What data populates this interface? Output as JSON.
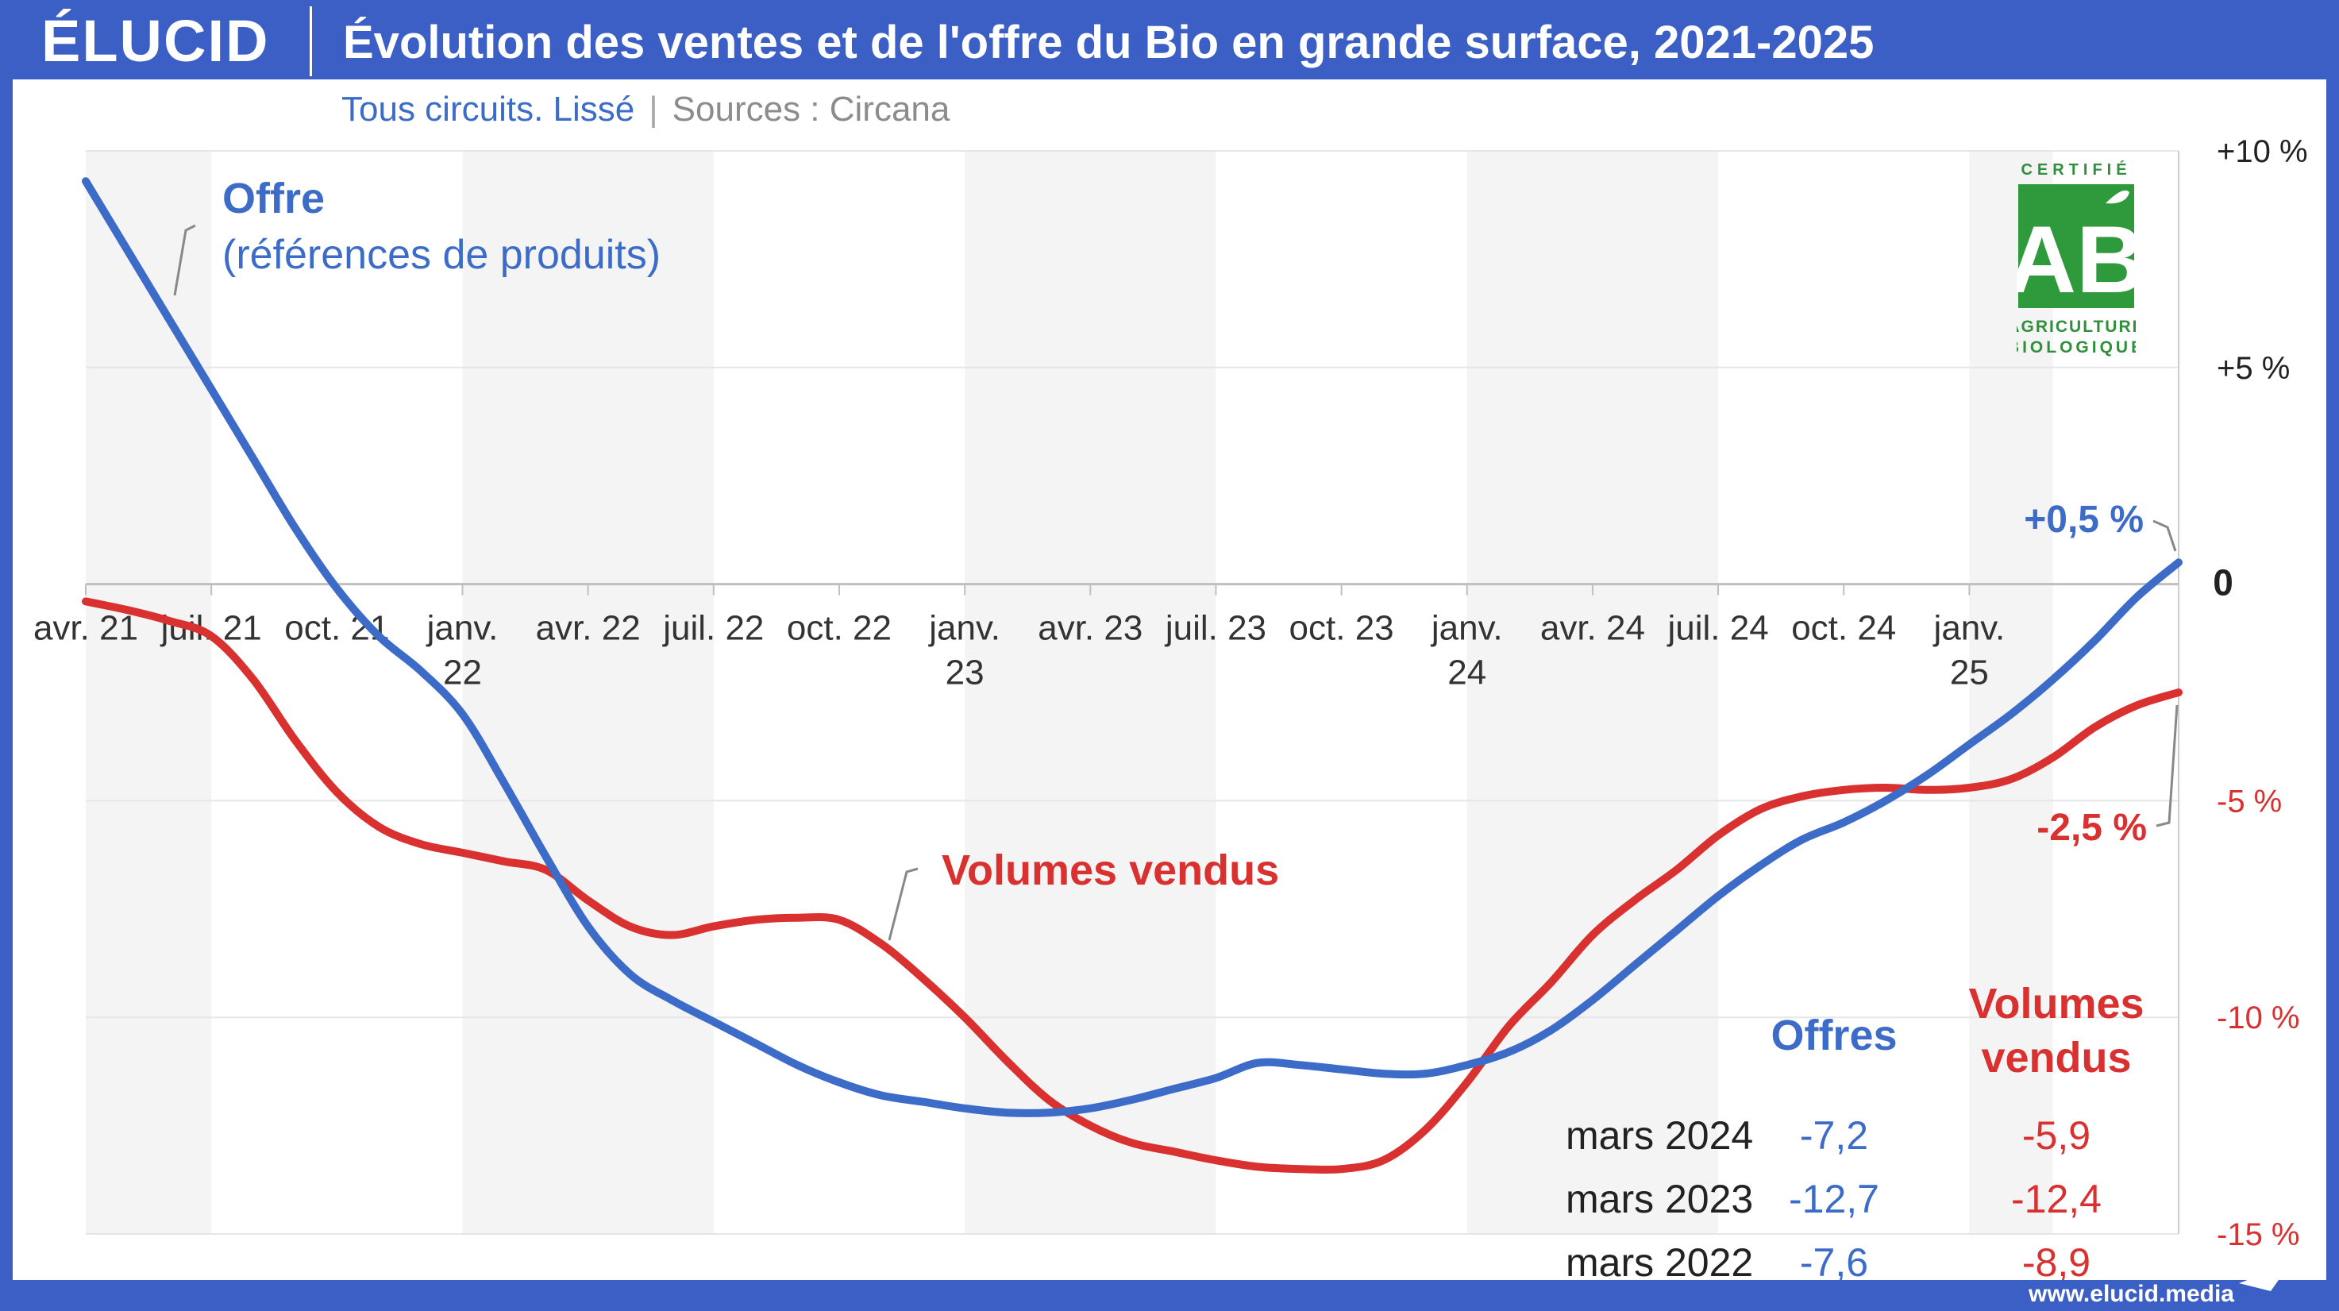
{
  "brand": {
    "logo": "ÉLUCID",
    "url": "www.elucid.media",
    "colors": {
      "frame": "#3b5fc4",
      "offre": "#3c6cc8",
      "volumes": "#d93030"
    }
  },
  "header": {
    "title": "Évolution des ventes et de l'offre du Bio en grande surface, 2021-2025"
  },
  "subtitle": {
    "text": "Tous circuits. Lissé",
    "separator": "|",
    "source": "Sources : Circana"
  },
  "badge": {
    "top": "CERTIFIÉ",
    "mark": "AB",
    "line1": "AGRICULTURE",
    "line2": "BIOLOGIQUE"
  },
  "chart_data": {
    "type": "line",
    "title": "Évolution des ventes et de l'offre du Bio en grande surface, 2021-2025",
    "ylim": [
      -15,
      10
    ],
    "yticks": [
      {
        "v": 10,
        "label": "+10 %"
      },
      {
        "v": 5,
        "label": "+5 %"
      },
      {
        "v": 0,
        "label": "0"
      },
      {
        "v": -5,
        "label": "-5 %"
      },
      {
        "v": -10,
        "label": "-10 %"
      },
      {
        "v": -15,
        "label": "-15 %"
      }
    ],
    "x_axis": "mois (avril 2021 – avril 2025)",
    "xticks": [
      {
        "m": 0,
        "label": [
          "avr. 21"
        ]
      },
      {
        "m": 3,
        "label": [
          "juil. 21"
        ]
      },
      {
        "m": 6,
        "label": [
          "oct. 21"
        ]
      },
      {
        "m": 9,
        "label": [
          "janv.",
          "22"
        ]
      },
      {
        "m": 12,
        "label": [
          "avr. 22"
        ]
      },
      {
        "m": 15,
        "label": [
          "juil. 22"
        ]
      },
      {
        "m": 18,
        "label": [
          "oct. 22"
        ]
      },
      {
        "m": 21,
        "label": [
          "janv.",
          "23"
        ]
      },
      {
        "m": 24,
        "label": [
          "avr. 23"
        ]
      },
      {
        "m": 27,
        "label": [
          "juil. 23"
        ]
      },
      {
        "m": 30,
        "label": [
          "oct. 23"
        ]
      },
      {
        "m": 33,
        "label": [
          "janv.",
          "24"
        ]
      },
      {
        "m": 36,
        "label": [
          "avr. 24"
        ]
      },
      {
        "m": 39,
        "label": [
          "juil. 24"
        ]
      },
      {
        "m": 42,
        "label": [
          "oct. 24"
        ]
      },
      {
        "m": 45,
        "label": [
          "janv.",
          "25"
        ]
      }
    ],
    "grid": "horizontal",
    "shaded_bands": [
      [
        0,
        3
      ],
      [
        9,
        15
      ],
      [
        21,
        27
      ],
      [
        33,
        39
      ],
      [
        45,
        47
      ]
    ],
    "series": [
      {
        "name": "Offre",
        "label": [
          "Offre",
          "(références de produits)"
        ],
        "color": "#3c6cc8",
        "points": [
          [
            0,
            9.3
          ],
          [
            1,
            7.7
          ],
          [
            2,
            6.1
          ],
          [
            3,
            4.5
          ],
          [
            4,
            2.9
          ],
          [
            5,
            1.3
          ],
          [
            6,
            -0.1
          ],
          [
            7,
            -1.2
          ],
          [
            8,
            -2.0
          ],
          [
            9,
            -3.0
          ],
          [
            10,
            -4.6
          ],
          [
            11,
            -6.3
          ],
          [
            12,
            -7.9
          ],
          [
            13,
            -9.0
          ],
          [
            14,
            -9.6
          ],
          [
            15,
            -10.1
          ],
          [
            16,
            -10.6
          ],
          [
            17,
            -11.1
          ],
          [
            18,
            -11.5
          ],
          [
            19,
            -11.8
          ],
          [
            20,
            -11.95
          ],
          [
            21,
            -12.1
          ],
          [
            22,
            -12.2
          ],
          [
            23,
            -12.2
          ],
          [
            24,
            -12.1
          ],
          [
            25,
            -11.9
          ],
          [
            26,
            -11.65
          ],
          [
            27,
            -11.4
          ],
          [
            28,
            -11.05
          ],
          [
            29,
            -11.1
          ],
          [
            30,
            -11.2
          ],
          [
            31,
            -11.3
          ],
          [
            32,
            -11.3
          ],
          [
            33,
            -11.1
          ],
          [
            34,
            -10.8
          ],
          [
            35,
            -10.3
          ],
          [
            36,
            -9.6
          ],
          [
            37,
            -8.8
          ],
          [
            38,
            -8.0
          ],
          [
            39,
            -7.2
          ],
          [
            40,
            -6.5
          ],
          [
            41,
            -5.9
          ],
          [
            42,
            -5.5
          ],
          [
            43,
            -5.0
          ],
          [
            44,
            -4.4
          ],
          [
            45,
            -3.7
          ],
          [
            46,
            -3.0
          ],
          [
            47,
            -2.2
          ],
          [
            48,
            -1.3
          ],
          [
            49,
            -0.3
          ],
          [
            50,
            0.5
          ]
        ],
        "end_label": "+0,5 %"
      },
      {
        "name": "Volumes vendus",
        "label": [
          "Volumes vendus"
        ],
        "color": "#d93030",
        "points": [
          [
            0,
            -0.4
          ],
          [
            1,
            -0.6
          ],
          [
            2,
            -0.85
          ],
          [
            3,
            -1.2
          ],
          [
            4,
            -2.2
          ],
          [
            5,
            -3.6
          ],
          [
            6,
            -4.8
          ],
          [
            7,
            -5.6
          ],
          [
            8,
            -6.0
          ],
          [
            9,
            -6.2
          ],
          [
            10,
            -6.4
          ],
          [
            11,
            -6.6
          ],
          [
            12,
            -7.3
          ],
          [
            13,
            -7.9
          ],
          [
            14,
            -8.1
          ],
          [
            15,
            -7.9
          ],
          [
            16,
            -7.75
          ],
          [
            17,
            -7.7
          ],
          [
            18,
            -7.75
          ],
          [
            19,
            -8.3
          ],
          [
            20,
            -9.1
          ],
          [
            21,
            -10.0
          ],
          [
            22,
            -11.0
          ],
          [
            23,
            -11.9
          ],
          [
            24,
            -12.5
          ],
          [
            25,
            -12.9
          ],
          [
            26,
            -13.1
          ],
          [
            27,
            -13.3
          ],
          [
            28,
            -13.45
          ],
          [
            29,
            -13.5
          ],
          [
            30,
            -13.5
          ],
          [
            31,
            -13.3
          ],
          [
            32,
            -12.6
          ],
          [
            33,
            -11.5
          ],
          [
            34,
            -10.2
          ],
          [
            35,
            -9.2
          ],
          [
            36,
            -8.1
          ],
          [
            37,
            -7.3
          ],
          [
            38,
            -6.6
          ],
          [
            39,
            -5.8
          ],
          [
            40,
            -5.2
          ],
          [
            41,
            -4.9
          ],
          [
            42,
            -4.75
          ],
          [
            43,
            -4.7
          ],
          [
            44,
            -4.75
          ],
          [
            45,
            -4.7
          ],
          [
            46,
            -4.5
          ],
          [
            47,
            -4.0
          ],
          [
            48,
            -3.3
          ],
          [
            49,
            -2.8
          ],
          [
            50,
            -2.5
          ]
        ],
        "end_label": "-2,5 %"
      }
    ],
    "summary_table": {
      "columns": [
        "Offres",
        "Volumes vendus"
      ],
      "column_lines": [
        [
          "Offres"
        ],
        [
          "Volumes",
          "vendus"
        ]
      ],
      "rows": [
        {
          "label": "mars 2024",
          "offres": "-7,2",
          "volumes": "-5,9"
        },
        {
          "label": "mars 2023",
          "offres": "-12,7",
          "volumes": "-12,4"
        },
        {
          "label": "mars 2022",
          "offres": "-7,6",
          "volumes": "-8,9"
        }
      ]
    }
  }
}
